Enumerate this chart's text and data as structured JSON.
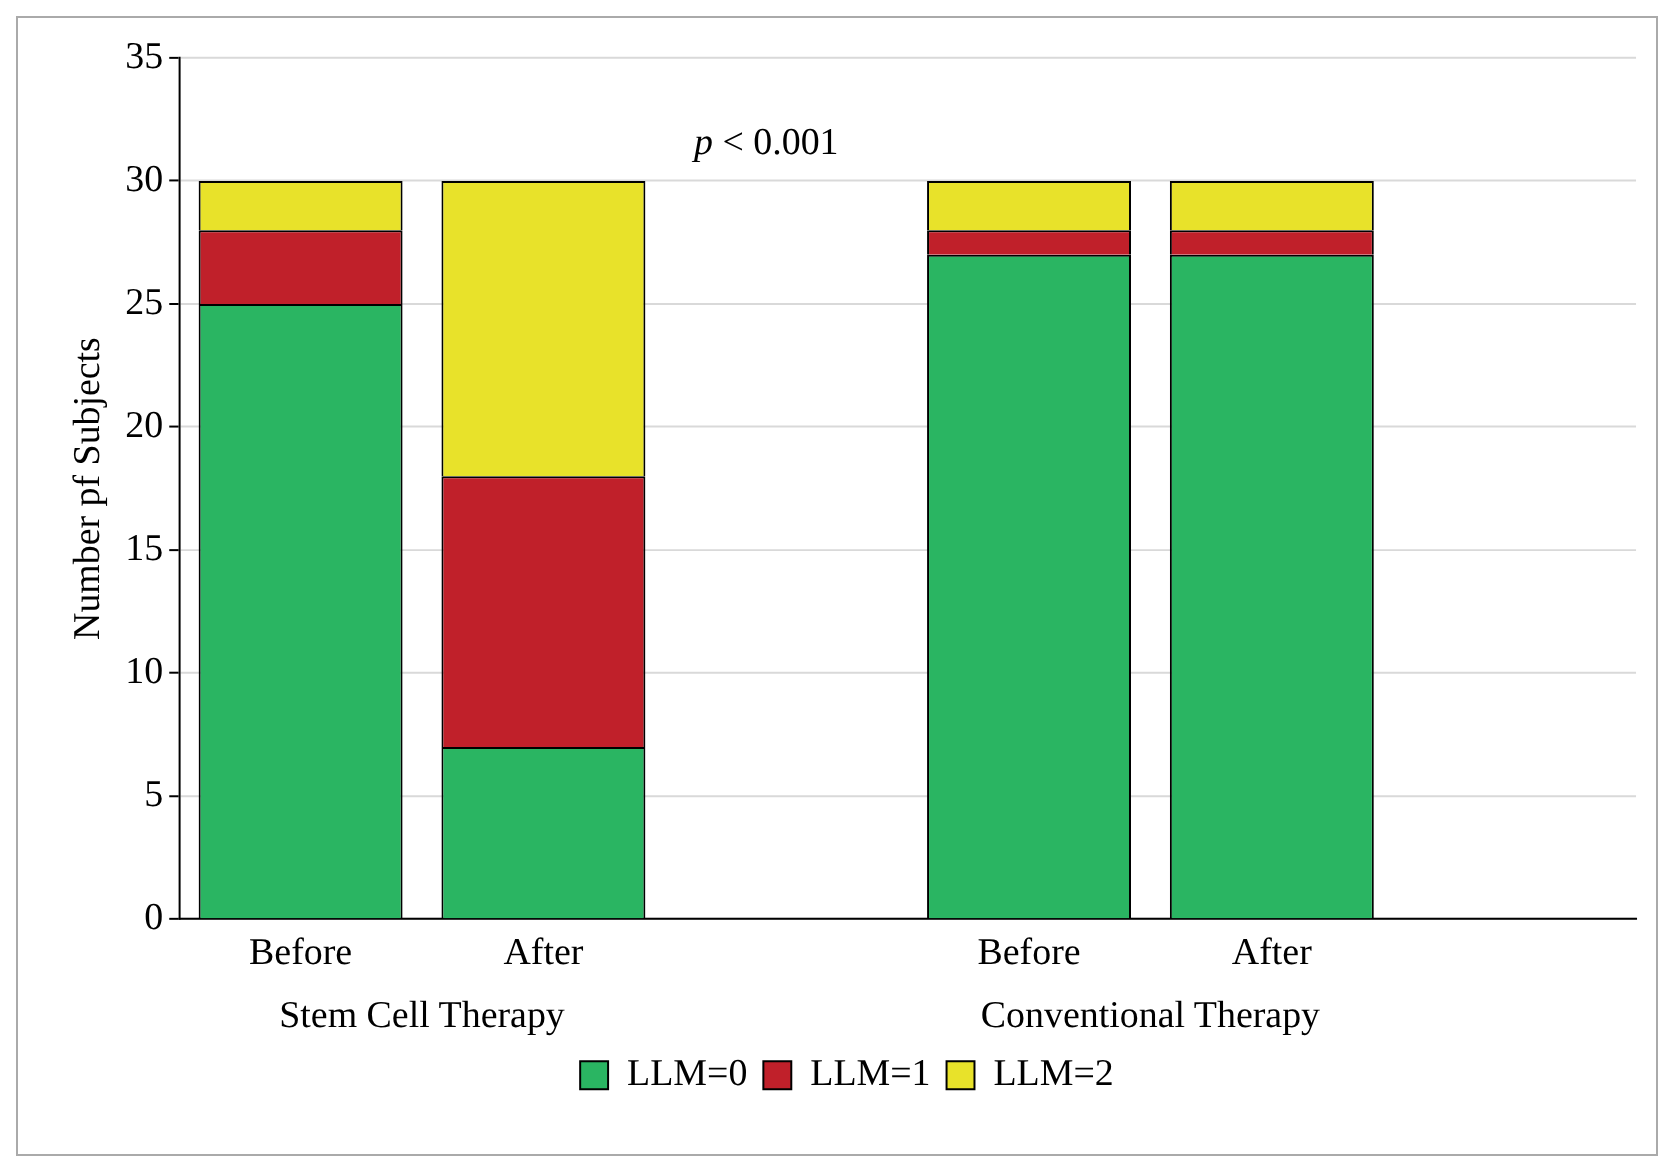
{
  "chart_data": {
    "type": "bar",
    "stacked": true,
    "ylabel": "Number pf Subjects",
    "categories": [
      "Before",
      "After",
      null,
      "Before",
      "After",
      null
    ],
    "series": [
      {
        "name": "LLM=0",
        "color": "#2ab562",
        "values": [
          25,
          7,
          null,
          27,
          27,
          null
        ]
      },
      {
        "name": "LLM=1",
        "color": "#c0202a",
        "values": [
          3,
          11,
          null,
          1,
          1,
          null
        ]
      },
      {
        "name": "LLM=2",
        "color": "#e8e22a",
        "values": [
          2,
          12,
          null,
          2,
          2,
          null
        ]
      }
    ],
    "ylim": [
      0,
      35
    ],
    "yticks": [
      0,
      5,
      10,
      15,
      20,
      25,
      30,
      35
    ],
    "grid": "y",
    "legend": "bottom",
    "annotations": [
      "p < 0.001",
      "Stem Cell Therapy",
      "Conventional Therapy"
    ]
  }
}
